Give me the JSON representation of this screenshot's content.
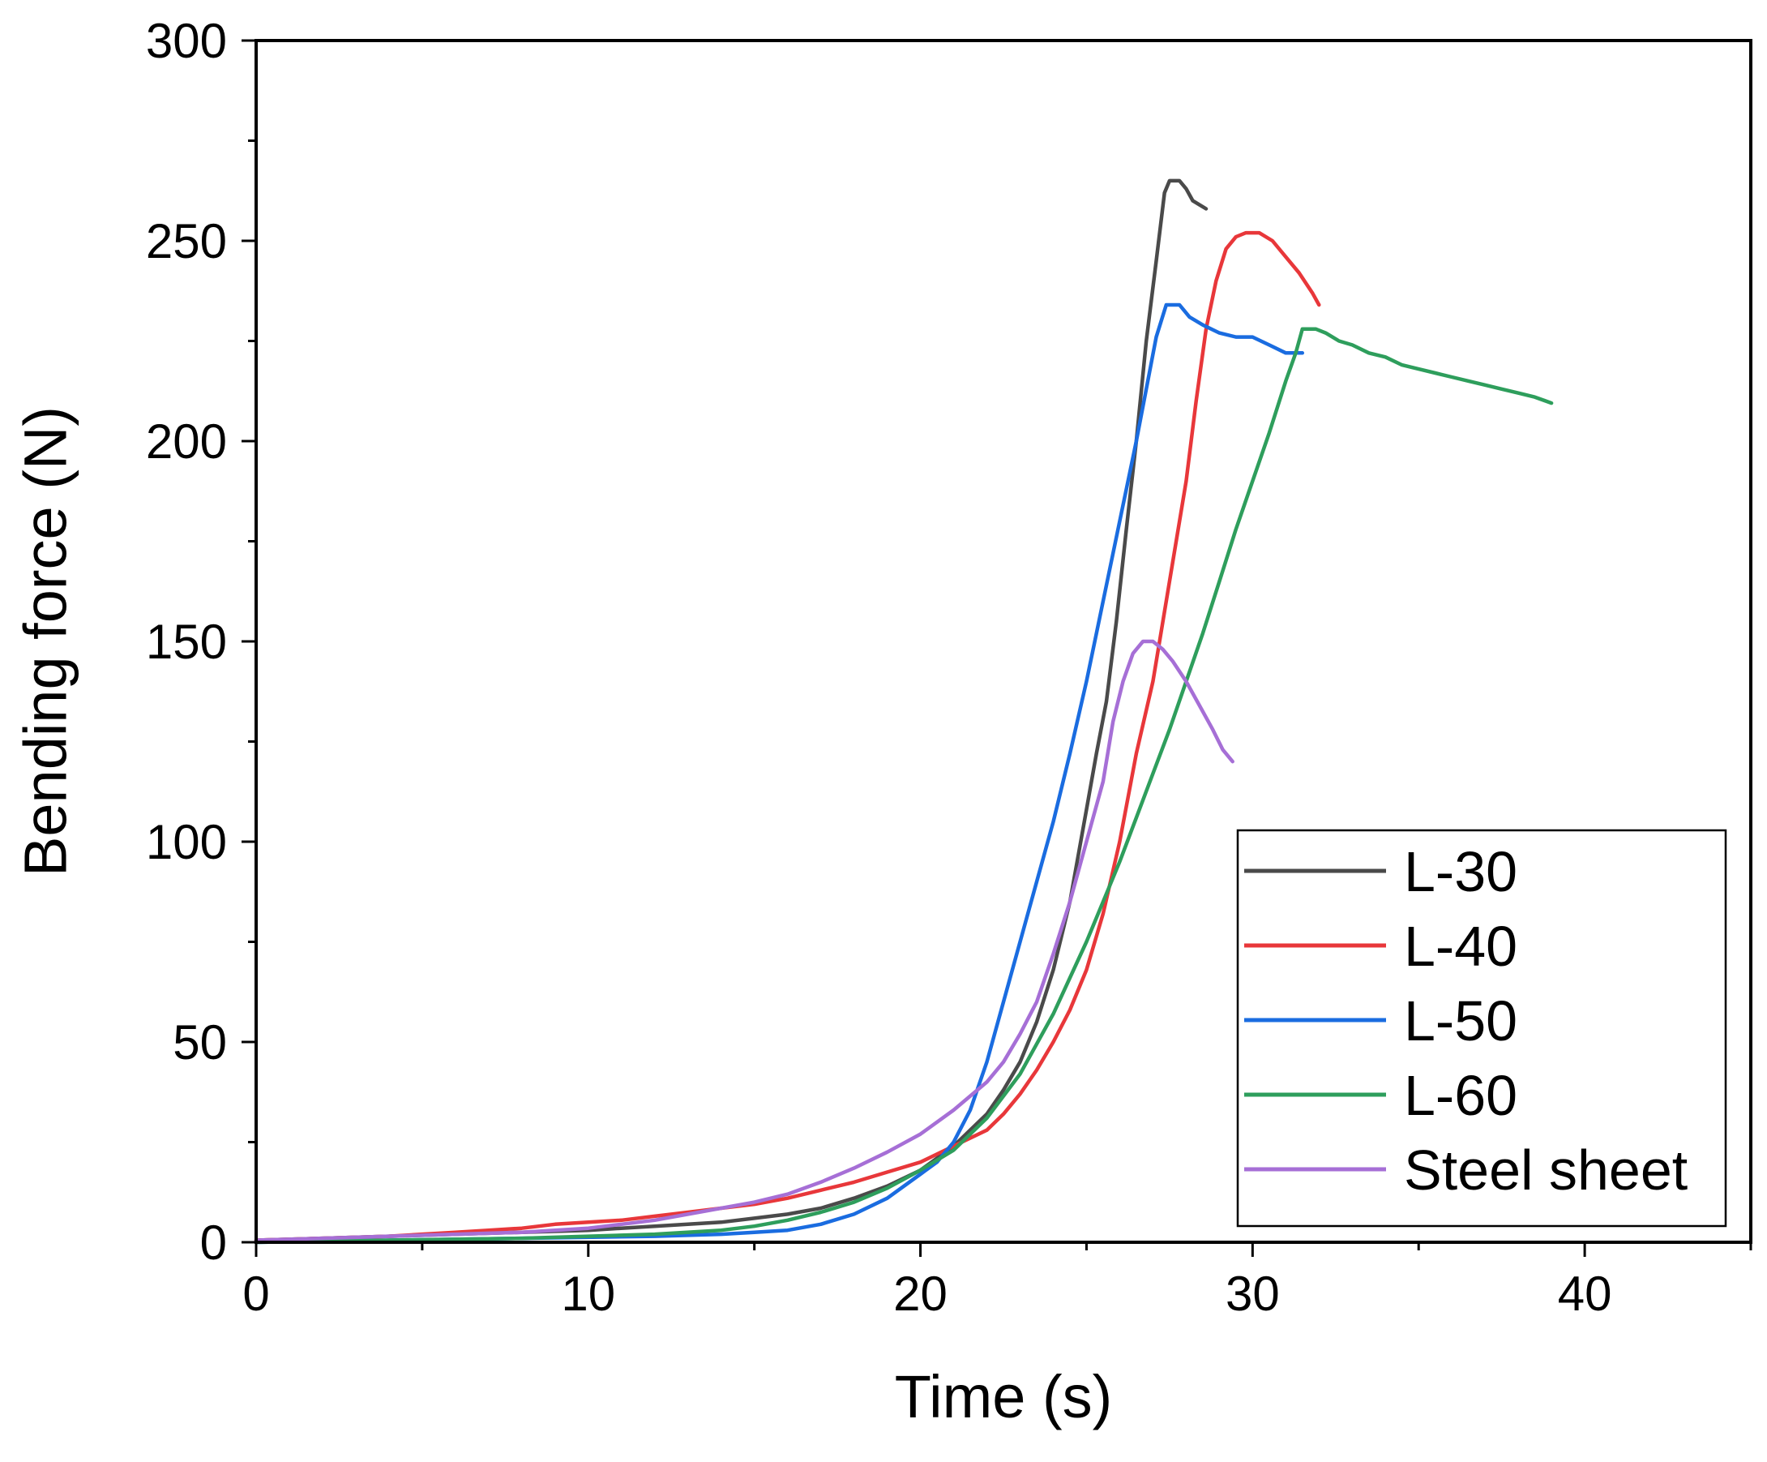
{
  "chart_data": {
    "type": "line",
    "title": "",
    "xlabel": "Time (s)",
    "ylabel": "Bending force (N)",
    "xlim": [
      0,
      45
    ],
    "ylim": [
      0,
      300
    ],
    "x_ticks": [
      0,
      10,
      20,
      30,
      40
    ],
    "x_tick_labels": [
      "0",
      "10",
      "20",
      "30",
      "40"
    ],
    "y_ticks": [
      0,
      50,
      100,
      150,
      200,
      250,
      300
    ],
    "y_tick_labels": [
      "0",
      "50",
      "100",
      "150",
      "200",
      "250",
      "300"
    ],
    "x_minor_ticks": [
      5,
      15,
      25,
      35,
      45
    ],
    "y_minor_ticks": [
      25,
      75,
      125,
      175,
      225,
      275
    ],
    "grid": false,
    "legend_position": "bottom-right",
    "series": [
      {
        "name": "L-30",
        "color": "#4a4a4a",
        "points": [
          [
            0,
            0.5
          ],
          [
            2,
            1
          ],
          [
            4,
            1.5
          ],
          [
            6,
            2
          ],
          [
            8,
            2.5
          ],
          [
            10,
            3
          ],
          [
            12,
            4
          ],
          [
            14,
            5
          ],
          [
            15,
            6
          ],
          [
            16,
            7
          ],
          [
            17,
            8.5
          ],
          [
            18,
            11
          ],
          [
            19,
            14
          ],
          [
            20,
            18
          ],
          [
            21,
            24
          ],
          [
            22,
            32
          ],
          [
            22.5,
            38
          ],
          [
            23,
            45
          ],
          [
            23.5,
            55
          ],
          [
            24,
            68
          ],
          [
            24.5,
            85
          ],
          [
            25,
            108
          ],
          [
            25.3,
            122
          ],
          [
            25.6,
            135
          ],
          [
            25.9,
            155
          ],
          [
            26.2,
            178
          ],
          [
            26.5,
            200
          ],
          [
            26.8,
            225
          ],
          [
            27.1,
            245
          ],
          [
            27.35,
            262
          ],
          [
            27.5,
            265
          ],
          [
            27.8,
            265
          ],
          [
            28.0,
            263
          ],
          [
            28.2,
            260
          ],
          [
            28.6,
            258
          ]
        ]
      },
      {
        "name": "L-40",
        "color": "#e8373a",
        "points": [
          [
            0,
            0.5
          ],
          [
            2,
            1
          ],
          [
            4,
            1.5
          ],
          [
            5,
            2
          ],
          [
            6,
            2.5
          ],
          [
            7,
            3
          ],
          [
            8,
            3.5
          ],
          [
            9,
            4.5
          ],
          [
            10,
            5
          ],
          [
            11,
            5.5
          ],
          [
            12,
            6.5
          ],
          [
            13,
            7.5
          ],
          [
            14,
            8.5
          ],
          [
            15,
            9.5
          ],
          [
            16,
            11
          ],
          [
            17,
            13
          ],
          [
            18,
            15
          ],
          [
            19,
            17.5
          ],
          [
            20,
            20
          ],
          [
            21,
            24
          ],
          [
            22,
            28
          ],
          [
            22.5,
            32
          ],
          [
            23,
            37
          ],
          [
            23.5,
            43
          ],
          [
            24,
            50
          ],
          [
            24.5,
            58
          ],
          [
            25,
            68
          ],
          [
            25.5,
            82
          ],
          [
            26,
            100
          ],
          [
            26.5,
            122
          ],
          [
            27,
            140
          ],
          [
            27.5,
            165
          ],
          [
            28,
            190
          ],
          [
            28.3,
            210
          ],
          [
            28.6,
            228
          ],
          [
            28.9,
            240
          ],
          [
            29.2,
            248
          ],
          [
            29.5,
            251
          ],
          [
            29.8,
            252
          ],
          [
            30.2,
            252
          ],
          [
            30.6,
            250
          ],
          [
            31,
            246
          ],
          [
            31.4,
            242
          ],
          [
            31.8,
            237
          ],
          [
            32,
            234
          ]
        ]
      },
      {
        "name": "L-50",
        "color": "#1a6ce0",
        "points": [
          [
            0,
            0
          ],
          [
            4,
            0.5
          ],
          [
            8,
            1
          ],
          [
            12,
            1.5
          ],
          [
            14,
            2
          ],
          [
            15,
            2.5
          ],
          [
            16,
            3
          ],
          [
            17,
            4.5
          ],
          [
            18,
            7
          ],
          [
            19,
            11
          ],
          [
            20,
            17
          ],
          [
            20.5,
            20
          ],
          [
            21,
            25
          ],
          [
            21.5,
            33
          ],
          [
            22,
            45
          ],
          [
            22.5,
            60
          ],
          [
            23,
            75
          ],
          [
            23.5,
            90
          ],
          [
            24,
            105
          ],
          [
            24.5,
            122
          ],
          [
            25,
            140
          ],
          [
            25.5,
            160
          ],
          [
            26,
            180
          ],
          [
            26.5,
            200
          ],
          [
            26.8,
            213
          ],
          [
            27.1,
            226
          ],
          [
            27.4,
            234
          ],
          [
            27.8,
            234
          ],
          [
            28.1,
            231
          ],
          [
            28.5,
            229
          ],
          [
            29,
            227
          ],
          [
            29.5,
            226
          ],
          [
            30,
            226
          ],
          [
            30.5,
            224
          ],
          [
            31,
            222
          ],
          [
            31.5,
            222
          ]
        ]
      },
      {
        "name": "L-60",
        "color": "#2e9e5c",
        "points": [
          [
            0,
            0
          ],
          [
            4,
            0.5
          ],
          [
            8,
            1
          ],
          [
            12,
            2
          ],
          [
            14,
            3
          ],
          [
            15,
            4
          ],
          [
            16,
            5.5
          ],
          [
            17,
            7.5
          ],
          [
            18,
            10
          ],
          [
            19,
            13.5
          ],
          [
            20,
            18
          ],
          [
            21,
            23
          ],
          [
            22,
            31
          ],
          [
            23,
            42
          ],
          [
            24,
            57
          ],
          [
            25,
            75
          ],
          [
            26,
            95
          ],
          [
            26.5,
            106
          ],
          [
            27,
            117
          ],
          [
            27.5,
            128
          ],
          [
            28,
            140
          ],
          [
            28.5,
            152
          ],
          [
            29,
            165
          ],
          [
            29.5,
            178
          ],
          [
            30,
            190
          ],
          [
            30.5,
            202
          ],
          [
            31,
            215
          ],
          [
            31.3,
            222
          ],
          [
            31.5,
            228
          ],
          [
            31.9,
            228
          ],
          [
            32.2,
            227
          ],
          [
            32.6,
            225
          ],
          [
            33,
            224
          ],
          [
            33.5,
            222
          ],
          [
            34,
            221
          ],
          [
            34.5,
            219
          ],
          [
            35,
            218
          ],
          [
            35.5,
            217
          ],
          [
            36,
            216
          ],
          [
            36.5,
            215
          ],
          [
            37,
            214
          ],
          [
            37.5,
            213
          ],
          [
            38,
            212
          ],
          [
            38.5,
            211
          ],
          [
            39,
            209.5
          ]
        ]
      },
      {
        "name": "Steel sheet",
        "color": "#a66fd6",
        "points": [
          [
            0,
            0.5
          ],
          [
            2,
            1
          ],
          [
            4,
            1.5
          ],
          [
            6,
            2
          ],
          [
            8,
            2.5
          ],
          [
            10,
            3.5
          ],
          [
            11,
            4.5
          ],
          [
            12,
            5.5
          ],
          [
            13,
            7
          ],
          [
            14,
            8.5
          ],
          [
            15,
            10
          ],
          [
            16,
            12
          ],
          [
            17,
            15
          ],
          [
            18,
            18.5
          ],
          [
            19,
            22.5
          ],
          [
            20,
            27
          ],
          [
            21,
            33
          ],
          [
            22,
            40
          ],
          [
            22.5,
            45
          ],
          [
            23,
            52
          ],
          [
            23.5,
            60
          ],
          [
            24,
            72
          ],
          [
            24.5,
            85
          ],
          [
            25,
            100
          ],
          [
            25.5,
            115
          ],
          [
            25.8,
            130
          ],
          [
            26.1,
            140
          ],
          [
            26.4,
            147
          ],
          [
            26.7,
            150
          ],
          [
            27.0,
            150
          ],
          [
            27.3,
            148
          ],
          [
            27.6,
            145
          ],
          [
            28,
            140
          ],
          [
            28.4,
            134
          ],
          [
            28.8,
            128
          ],
          [
            29.1,
            123
          ],
          [
            29.4,
            120
          ]
        ]
      }
    ]
  }
}
